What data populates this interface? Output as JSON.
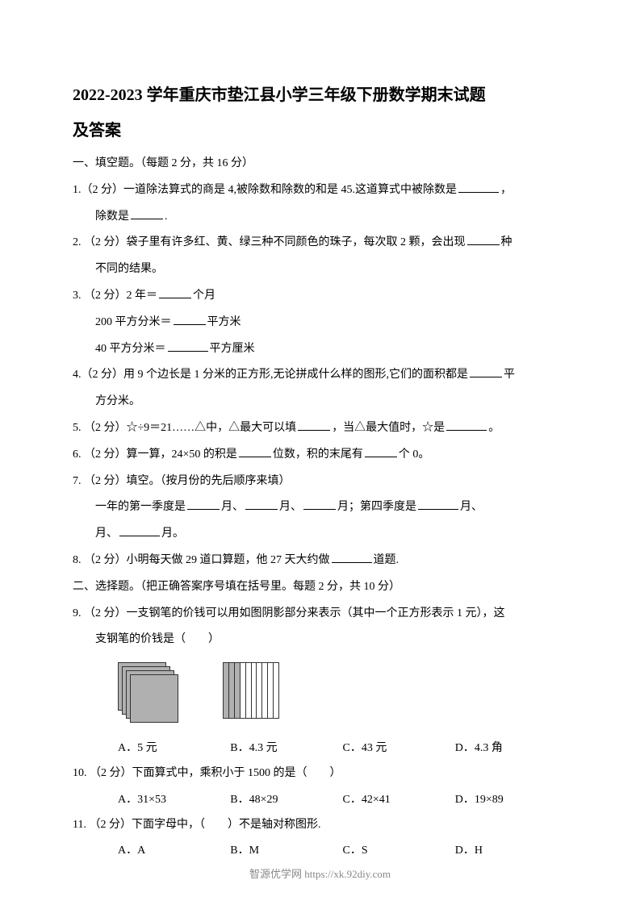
{
  "title_line1": "2022-2023 学年重庆市垫江县小学三年级下册数学期末试题",
  "title_line2": "及答案",
  "section1": "一、填空题。（每题 2 分，共 16 分）",
  "q1": {
    "prefix": "1.（2 分）一道除法算式的商是 4,被除数和除数的和是 45.这道算式中被除数是",
    "suffix": "，",
    "line2_prefix": "除数是",
    "line2_suffix": "."
  },
  "q2": {
    "prefix": "2. （2 分）袋子里有许多红、黄、绿三种不同颜色的珠子，每次取 2 颗，会出现",
    "suffix": "种",
    "line2": "不同的结果。"
  },
  "q3": {
    "line1_prefix": "3. （2 分）2 年＝",
    "line1_suffix": "个月",
    "line2_prefix": "200 平方分米＝",
    "line2_suffix": "平方米",
    "line3_prefix": "40 平方分米＝",
    "line3_suffix": "平方厘米"
  },
  "q4": {
    "prefix": "4.（2 分）用 9 个边长是 1 分米的正方形,无论拼成什么样的图形,它们的面积都是",
    "suffix": "平",
    "line2": "方分米。"
  },
  "q5": {
    "prefix": "5. （2 分）☆÷9＝21……△中，△最大可以填",
    "mid": "，当△最大值时，☆是",
    "suffix": "。"
  },
  "q6": {
    "prefix": "6. （2 分）算一算，24×50 的积是",
    "mid": "位数，积的末尾有",
    "suffix": "个 0。"
  },
  "q7": {
    "line1": "7. （2 分）填空。（按月份的先后顺序来填）",
    "line2_prefix": "一年的第一季度是",
    "line2_mid1": "月、",
    "line2_mid2": "月、",
    "line2_mid3": "月；第四季度是",
    "line2_suffix": "月、",
    "line3_mid": "月、",
    "line3_suffix": "月。"
  },
  "q8": {
    "prefix": "8. （2 分）小明每天做 29 道口算题，他 27 天大约做",
    "suffix": "道题."
  },
  "section2": "二、选择题。（把正确答案序号填在括号里。每题 2 分，共 10 分）",
  "q9": {
    "text": "9. （2 分）一支钢笔的价钱可以用如图阴影部分来表示（其中一个正方形表示 1 元），这",
    "line2": "支钢笔的价钱是（　　）",
    "options": [
      "A．5 元",
      "B．4.3 元",
      "C．43 元",
      "D．4.3 角"
    ]
  },
  "q10": {
    "text": "10. （2 分）下面算式中，乘积小于 1500 的是（　　）",
    "options": [
      "A．31×53",
      "B．48×29",
      "C．42×41",
      "D．19×89"
    ]
  },
  "q11": {
    "text": "11. （2 分）下面字母中，（　　）不是轴对称图形.",
    "options": [
      "A．A",
      "B．M",
      "C．S",
      "D．H"
    ]
  },
  "footer": "智源优学网 https://xk.92diy.com",
  "figure": {
    "squares_count": 4,
    "square_color": "#b0b0b0",
    "stripes_total": 10,
    "stripes_shaded": 3
  }
}
